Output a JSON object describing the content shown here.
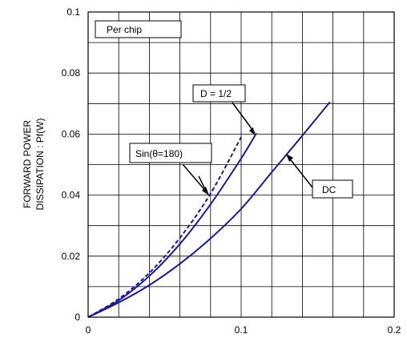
{
  "chart_data": {
    "type": "line",
    "xlabel": "",
    "ylabel": [
      "FORWARD POWER",
      "DISSIPATION : Pf(W)"
    ],
    "xlim": [
      0,
      0.2
    ],
    "ylim": [
      0,
      0.1
    ],
    "x_ticks": [
      "0",
      "0.1",
      "0.2"
    ],
    "y_ticks": [
      "0",
      "0.02",
      "0.04",
      "0.06",
      "0.08",
      "0.1"
    ],
    "grid": true,
    "series": [
      {
        "name": "DC",
        "style": "solid",
        "color": "#1a1a8c",
        "x": [
          0,
          0.02,
          0.04,
          0.06,
          0.08,
          0.1,
          0.12,
          0.14,
          0.158
        ],
        "y": [
          0,
          0.0048,
          0.0105,
          0.0175,
          0.0258,
          0.0355,
          0.0475,
          0.0595,
          0.0705
        ]
      },
      {
        "name": "D = 1/2",
        "style": "solid",
        "color": "#1a1a8c",
        "x": [
          0,
          0.02,
          0.04,
          0.06,
          0.08,
          0.1,
          0.11
        ],
        "y": [
          0,
          0.0055,
          0.0135,
          0.024,
          0.037,
          0.052,
          0.0603
        ]
      },
      {
        "name": "Sin(θ=180)",
        "style": "dashed",
        "color": "#1a1a8c",
        "x": [
          0,
          0.02,
          0.04,
          0.06,
          0.08,
          0.1
        ],
        "y": [
          0,
          0.006,
          0.0145,
          0.026,
          0.0405,
          0.059
        ]
      }
    ],
    "annotations": [
      {
        "text": "Per chip"
      },
      {
        "text": "D = 1/2"
      },
      {
        "text": "Sin(θ=180)"
      },
      {
        "text": "DC"
      }
    ]
  }
}
